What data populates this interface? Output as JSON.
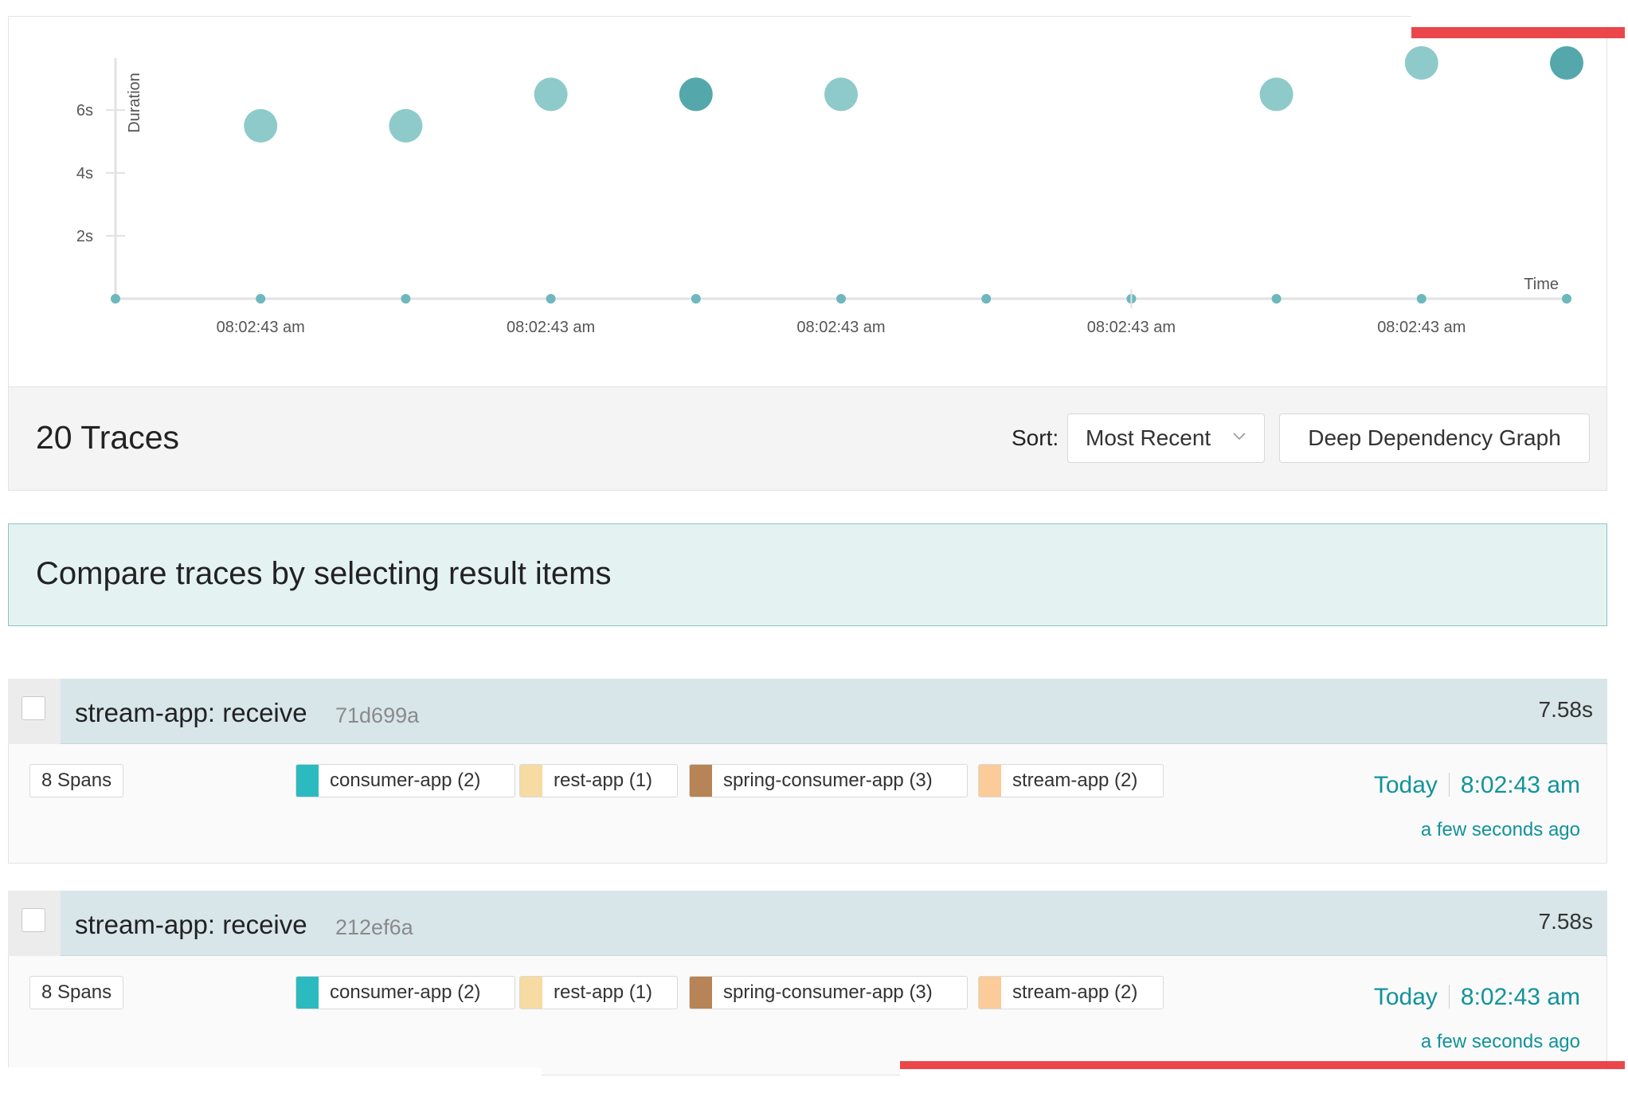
{
  "chart_data": {
    "type": "scatter",
    "ylabel": "Duration",
    "xlabel": "Time",
    "y_ticks": [
      "2s",
      "4s",
      "6s"
    ],
    "x_ticks": [
      "08:02:43 am",
      "08:02:43 am",
      "08:02:43 am",
      "08:02:43 am",
      "08:02:43 am"
    ],
    "ylim": [
      0,
      7.6
    ],
    "x_slots": 11,
    "points": [
      {
        "slot": 1,
        "y": 5.5,
        "highlight": false
      },
      {
        "slot": 2,
        "y": 5.5,
        "highlight": false
      },
      {
        "slot": 3,
        "y": 6.5,
        "highlight": false
      },
      {
        "slot": 4,
        "y": 6.5,
        "highlight": true
      },
      {
        "slot": 5,
        "y": 6.5,
        "highlight": false
      },
      {
        "slot": 8,
        "y": 6.5,
        "highlight": false
      },
      {
        "slot": 9,
        "y": 7.5,
        "highlight": false
      },
      {
        "slot": 10,
        "y": 7.5,
        "highlight": true
      }
    ],
    "colors": {
      "point": "#8ecaca",
      "highlight": "#54a8ab",
      "axis": "#e2e2e2",
      "tick_dot": "#6cb8bd"
    }
  },
  "results": {
    "count_label": "20 Traces",
    "sort_label": "Sort:",
    "sort_value": "Most Recent",
    "ddg_button": "Deep Dependency Graph"
  },
  "compare_banner": "Compare traces by selecting result items",
  "traces": [
    {
      "title": "stream-app: receive",
      "trace_id": "71d699a",
      "duration": "7.58s",
      "spans": "8 Spans",
      "services": [
        {
          "label": "consumer-app (2)",
          "color": "#2bbac0"
        },
        {
          "label": "rest-app (1)",
          "color": "#f6dba2"
        },
        {
          "label": "spring-consumer-app (3)",
          "color": "#b68456"
        },
        {
          "label": "stream-app (2)",
          "color": "#fbcb99"
        }
      ],
      "day": "Today",
      "time": "8:02:43 am",
      "relative": "a few seconds ago"
    },
    {
      "title": "stream-app: receive",
      "trace_id": "212ef6a",
      "duration": "7.58s",
      "spans": "8 Spans",
      "services": [
        {
          "label": "consumer-app (2)",
          "color": "#2bbac0"
        },
        {
          "label": "rest-app (1)",
          "color": "#f6dba2"
        },
        {
          "label": "spring-consumer-app (3)",
          "color": "#b68456"
        },
        {
          "label": "stream-app (2)",
          "color": "#fbcb99"
        }
      ],
      "day": "Today",
      "time": "8:02:43 am",
      "relative": "a few seconds ago"
    }
  ]
}
